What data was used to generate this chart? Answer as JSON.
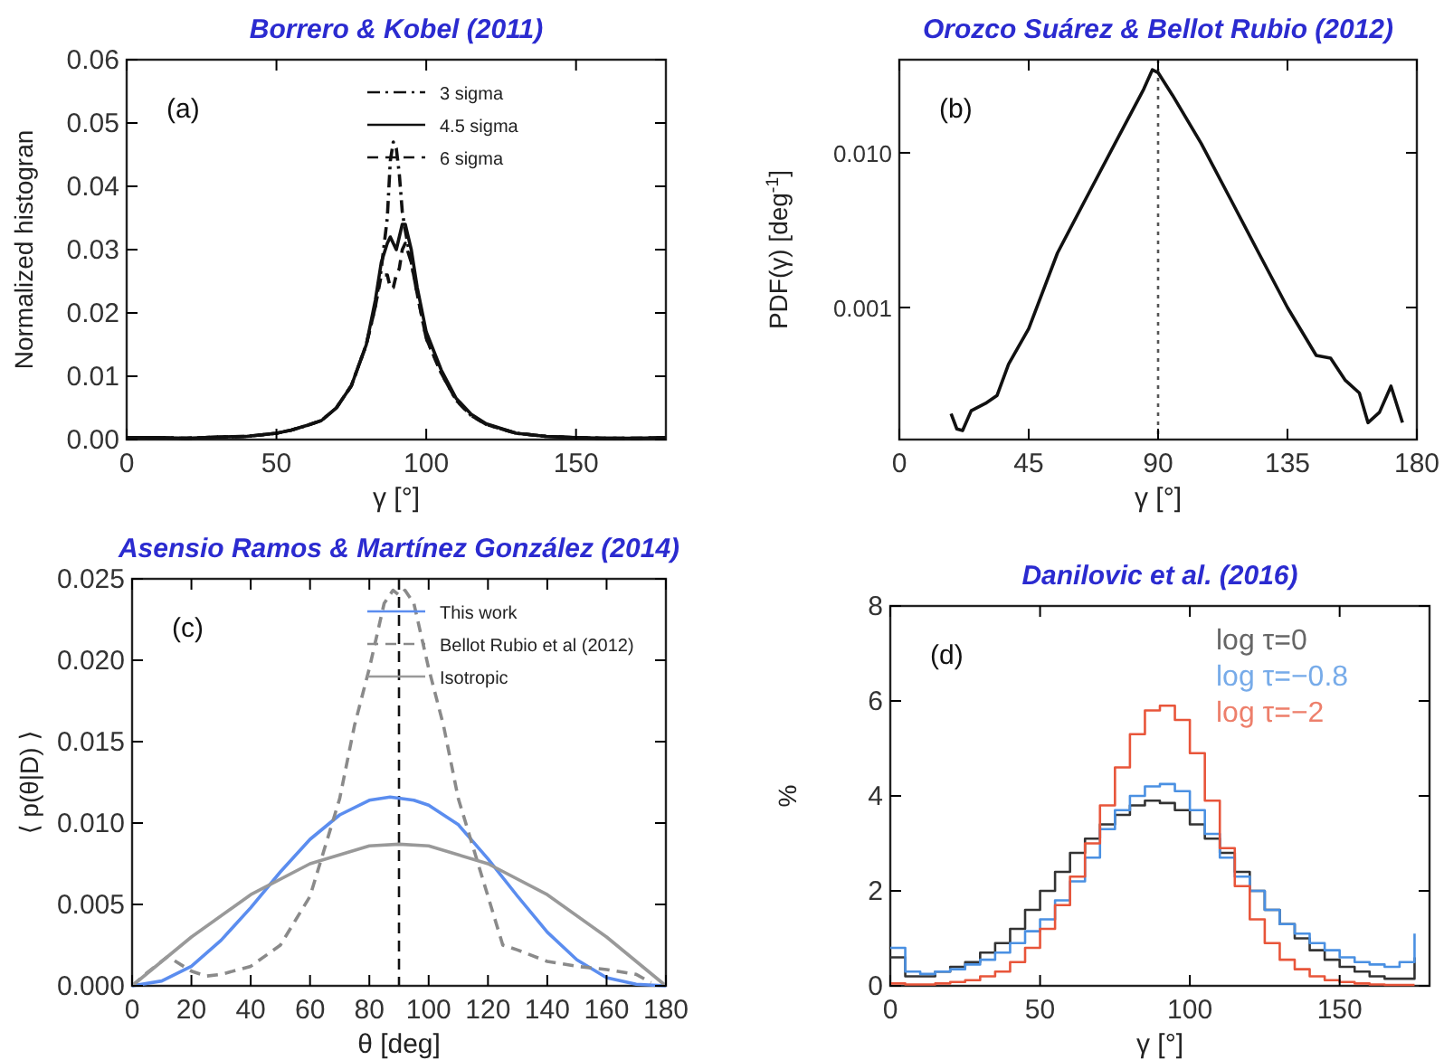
{
  "chart_data": [
    {
      "type": "line",
      "title": "Borrero & Kobel (2011)",
      "xlabel": "γ [°]",
      "ylabel": "Normalized histogran",
      "xlim": [
        0,
        180
      ],
      "xticks": [
        0,
        50,
        100,
        150
      ],
      "ylim": [
        0,
        0.06
      ],
      "yticks": [
        {
          "value": 0,
          "label": "0.00"
        },
        {
          "value": 0.01,
          "label": "0.01"
        },
        {
          "value": 0.02,
          "label": "0.02"
        },
        {
          "value": 0.03,
          "label": "0.03"
        },
        {
          "value": 0.04,
          "label": "0.04"
        },
        {
          "value": 0.05,
          "label": "0.05"
        },
        {
          "value": 0.06,
          "label": "0.06"
        }
      ],
      "legend": "top right",
      "annotations": [
        "(a)"
      ],
      "x": [
        0,
        10,
        20,
        30,
        40,
        50,
        55,
        60,
        65,
        70,
        75,
        80,
        83,
        85,
        87,
        88,
        89,
        90,
        91,
        92,
        93,
        95,
        97,
        100,
        105,
        110,
        115,
        120,
        130,
        140,
        150,
        160,
        170,
        180
      ],
      "series": [
        {
          "name": "3 sigma",
          "color": "#111111",
          "line_style": "dashdot",
          "values": [
            0.0003,
            0.0003,
            0.0002,
            0.0004,
            0.0005,
            0.001,
            0.0015,
            0.0022,
            0.003,
            0.005,
            0.0085,
            0.015,
            0.021,
            0.027,
            0.035,
            0.044,
            0.047,
            0.046,
            0.042,
            0.036,
            0.033,
            0.028,
            0.023,
            0.016,
            0.0105,
            0.0062,
            0.0038,
            0.0024,
            0.001,
            0.0005,
            0.0003,
            0.0002,
            0.0002,
            0.0003
          ]
        },
        {
          "name": "4.5 sigma",
          "color": "#111111",
          "line_style": "solid",
          "values": [
            0.0003,
            0.0003,
            0.0002,
            0.0004,
            0.0005,
            0.001,
            0.0015,
            0.0022,
            0.003,
            0.005,
            0.0085,
            0.015,
            0.022,
            0.028,
            0.031,
            0.032,
            0.031,
            0.03,
            0.032,
            0.034,
            0.034,
            0.03,
            0.024,
            0.017,
            0.011,
            0.0065,
            0.004,
            0.0025,
            0.001,
            0.0005,
            0.0003,
            0.0002,
            0.0002,
            0.0003
          ]
        },
        {
          "name": "6 sigma",
          "color": "#111111",
          "line_style": "dashed",
          "values": [
            0.0003,
            0.0003,
            0.0002,
            0.0004,
            0.0005,
            0.001,
            0.0015,
            0.0022,
            0.003,
            0.005,
            0.0085,
            0.015,
            0.021,
            0.026,
            0.026,
            0.024,
            0.024,
            0.026,
            0.027,
            0.03,
            0.031,
            0.028,
            0.023,
            0.016,
            0.0105,
            0.0062,
            0.0038,
            0.0024,
            0.001,
            0.0005,
            0.0003,
            0.0002,
            0.0002,
            0.0003
          ]
        }
      ]
    },
    {
      "type": "line",
      "title": "Orozco Suárez & Bellot Rubio (2012)",
      "xlabel": "γ [°]",
      "ylabel": "PDF(γ) [deg$^{-1}$]",
      "log": true,
      "xlim": [
        0,
        180
      ],
      "xticks": [
        0,
        45,
        90,
        135,
        180
      ],
      "ylim": [
        0.00014,
        0.04
      ],
      "yticks": [
        0.001,
        {
          "value": 0.01,
          "label": "0.010"
        }
      ],
      "annotations": [
        "(b)"
      ],
      "ref_lines": [
        {
          "axis": "x",
          "value": 90,
          "line_style": "dotted",
          "color": "#555555"
        }
      ],
      "series": [
        {
          "color": "#111111",
          "x": [
            18,
            20,
            22,
            25,
            30,
            34,
            38,
            45,
            55,
            65,
            75,
            85,
            88,
            90,
            95,
            105,
            115,
            125,
            135,
            145,
            150,
            155,
            160,
            163,
            167,
            171,
            175
          ],
          "values": [
            0.000206,
            0.000164,
            0.00016,
            0.000215,
            0.00024,
            0.00027,
            0.00043,
            0.00073,
            0.00225,
            0.0051,
            0.0115,
            0.0258,
            0.0344,
            0.033,
            0.0236,
            0.0115,
            0.0051,
            0.00225,
            0.001,
            0.00049,
            0.00047,
            0.00034,
            0.00028,
            0.00018,
            0.00021,
            0.00031,
            0.00018
          ]
        }
      ]
    },
    {
      "type": "line",
      "title": "Asensio Ramos & Martínez González (2014)",
      "xlabel": "θ [deg]",
      "ylabel": "⟨ p(θ|D) ⟩",
      "xlim": [
        0,
        180
      ],
      "xticks": [
        0,
        20,
        40,
        60,
        80,
        100,
        120,
        140,
        160,
        180
      ],
      "ylim": [
        0,
        0.025
      ],
      "yticks": [
        {
          "value": 0,
          "label": "0.000"
        },
        {
          "value": 0.005,
          "label": "0.005"
        },
        {
          "value": 0.01,
          "label": "0.010"
        },
        {
          "value": 0.015,
          "label": "0.015"
        },
        {
          "value": 0.02,
          "label": "0.020"
        },
        {
          "value": 0.025,
          "label": "0.025"
        }
      ],
      "legend": "top right",
      "annotations": [
        "(c)"
      ],
      "ref_lines": [
        {
          "axis": "x",
          "value": 90,
          "line_style": "dashed",
          "color": "#111111"
        }
      ],
      "series": [
        {
          "name": "This work",
          "color": "#5b8def",
          "line_style": "solid",
          "x": [
            0,
            10,
            20,
            30,
            40,
            50,
            60,
            70,
            80,
            87,
            95,
            100,
            110,
            120,
            130,
            140,
            150,
            160,
            170,
            180
          ],
          "values": [
            0,
            0.0003,
            0.0012,
            0.0028,
            0.0048,
            0.007,
            0.009,
            0.0105,
            0.0114,
            0.0116,
            0.0114,
            0.0111,
            0.0099,
            0.0078,
            0.0055,
            0.0033,
            0.0016,
            0.0005,
            0.0001,
            0
          ]
        },
        {
          "name": "Bellot Rubio et al (2012)",
          "color": "#8a8a8a",
          "line_style": "dashed",
          "x": [
            0,
            5,
            12,
            20,
            25,
            30,
            40,
            50,
            60,
            70,
            75,
            80,
            85,
            88,
            90,
            92,
            95,
            100,
            105,
            110,
            120,
            125,
            130,
            140,
            150,
            160,
            170,
            175
          ],
          "values": [
            0,
            0.0008,
            0.0018,
            0.0009,
            0.0006,
            0.0007,
            0.0012,
            0.0025,
            0.0055,
            0.0115,
            0.016,
            0.0195,
            0.0235,
            0.0243,
            0.024,
            0.0243,
            0.0235,
            0.0195,
            0.016,
            0.0115,
            0.0055,
            0.0025,
            0.0022,
            0.0015,
            0.0012,
            0.001,
            0.0007,
            0.0002
          ]
        },
        {
          "name": "Isotropic",
          "color": "#999999",
          "line_style": "solid",
          "x": [
            0,
            20,
            40,
            60,
            80,
            90,
            100,
            120,
            140,
            160,
            180
          ],
          "values": [
            0,
            0.003,
            0.0056,
            0.0075,
            0.0086,
            0.0087,
            0.0086,
            0.0075,
            0.0056,
            0.003,
            0
          ]
        }
      ]
    },
    {
      "type": "step",
      "title": "Danilovic et al. (2016)",
      "xlabel": "γ [°]",
      "ylabel": "%",
      "xlim": [
        0,
        180
      ],
      "xticks": [
        0,
        50,
        100,
        150
      ],
      "ylim": [
        0,
        8
      ],
      "yticks": [
        0,
        2,
        4,
        6,
        8
      ],
      "legend": "top right",
      "annotations": [
        "(d)"
      ],
      "x": [
        0,
        5,
        10,
        15,
        20,
        25,
        30,
        35,
        40,
        45,
        50,
        55,
        60,
        65,
        70,
        75,
        80,
        85,
        90,
        95,
        100,
        105,
        110,
        115,
        120,
        125,
        130,
        135,
        140,
        145,
        150,
        155,
        160,
        165,
        170,
        175
      ],
      "series": [
        {
          "name": "log τ=0",
          "color": "#333333",
          "values": [
            0.6,
            0.2,
            0.2,
            0.3,
            0.4,
            0.5,
            0.7,
            0.9,
            1.2,
            1.6,
            2.0,
            2.4,
            2.8,
            3.1,
            3.4,
            3.6,
            3.8,
            3.9,
            3.85,
            3.7,
            3.4,
            3.1,
            2.8,
            2.4,
            2.0,
            1.6,
            1.3,
            1.0,
            0.75,
            0.55,
            0.4,
            0.3,
            0.2,
            0.15,
            0.15,
            0.6
          ]
        },
        {
          "name": "log τ=−0.8",
          "color": "#4a90e2",
          "values": [
            0.8,
            0.3,
            0.25,
            0.3,
            0.35,
            0.45,
            0.55,
            0.7,
            0.9,
            1.15,
            1.4,
            1.8,
            2.2,
            2.7,
            3.3,
            3.7,
            4.0,
            4.2,
            4.25,
            4.1,
            3.7,
            3.2,
            2.7,
            2.3,
            2.0,
            1.6,
            1.3,
            1.1,
            0.9,
            0.75,
            0.6,
            0.5,
            0.45,
            0.4,
            0.5,
            1.1
          ]
        },
        {
          "name": "log τ=−2",
          "color": "#e8553a",
          "values": [
            0.05,
            0.03,
            0.03,
            0.05,
            0.08,
            0.12,
            0.2,
            0.3,
            0.5,
            0.8,
            1.2,
            1.7,
            2.3,
            3.0,
            3.8,
            4.6,
            5.3,
            5.8,
            5.9,
            5.6,
            4.9,
            3.9,
            2.9,
            2.1,
            1.4,
            0.9,
            0.55,
            0.35,
            0.2,
            0.12,
            0.08,
            0.05,
            0.03,
            0.02,
            0.02,
            0.02
          ]
        }
      ]
    }
  ]
}
